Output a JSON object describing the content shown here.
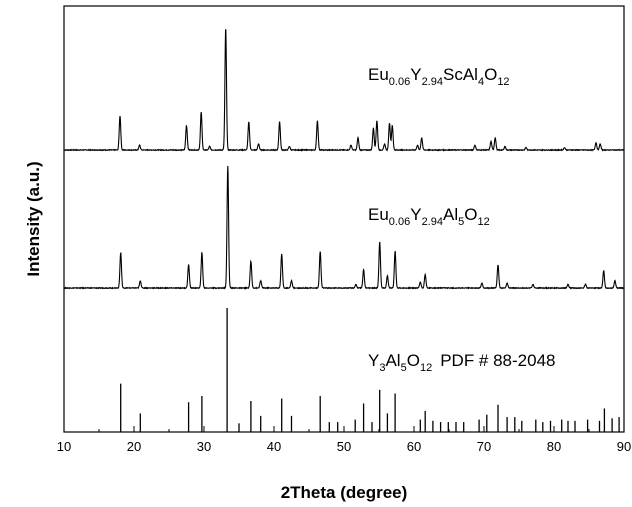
{
  "chart_data": {
    "type": "line",
    "xlabel": "2Theta (degree)",
    "ylabel": "Intensity (a.u.)",
    "xlim": [
      10,
      90
    ],
    "x_ticks": [
      "10",
      "20",
      "30",
      "40",
      "50",
      "60",
      "70",
      "80",
      "90"
    ],
    "grid": false,
    "panels": [
      {
        "name": "Eu0.06Y2.94ScAl4O12",
        "label": {
          "base1": "Eu",
          "sub1": "0.06",
          "base2": "Y",
          "sub2": "2.94",
          "base3": "ScAl",
          "sub3": "4",
          "base4": "O",
          "sub4": "12"
        },
        "style": "profile",
        "peaks": [
          {
            "x": 18.0,
            "y": 0.28
          },
          {
            "x": 20.8,
            "y": 0.04
          },
          {
            "x": 27.5,
            "y": 0.2
          },
          {
            "x": 29.6,
            "y": 0.31
          },
          {
            "x": 30.8,
            "y": 0.03
          },
          {
            "x": 33.1,
            "y": 1.0
          },
          {
            "x": 36.4,
            "y": 0.23
          },
          {
            "x": 37.8,
            "y": 0.05
          },
          {
            "x": 40.8,
            "y": 0.23
          },
          {
            "x": 42.2,
            "y": 0.03
          },
          {
            "x": 46.2,
            "y": 0.24
          },
          {
            "x": 51.0,
            "y": 0.04
          },
          {
            "x": 52.0,
            "y": 0.1
          },
          {
            "x": 54.2,
            "y": 0.18
          },
          {
            "x": 54.7,
            "y": 0.24
          },
          {
            "x": 55.8,
            "y": 0.05
          },
          {
            "x": 56.5,
            "y": 0.22
          },
          {
            "x": 56.9,
            "y": 0.2
          },
          {
            "x": 60.5,
            "y": 0.04
          },
          {
            "x": 61.1,
            "y": 0.1
          },
          {
            "x": 68.7,
            "y": 0.04
          },
          {
            "x": 71.0,
            "y": 0.07
          },
          {
            "x": 71.6,
            "y": 0.1
          },
          {
            "x": 73.0,
            "y": 0.03
          },
          {
            "x": 76.0,
            "y": 0.02
          },
          {
            "x": 81.5,
            "y": 0.02
          },
          {
            "x": 86.0,
            "y": 0.06
          },
          {
            "x": 86.6,
            "y": 0.05
          }
        ]
      },
      {
        "name": "Eu0.06Y2.94Al5O12",
        "label": {
          "base1": "Eu",
          "sub1": "0.06",
          "base2": "Y",
          "sub2": "2.94",
          "base3": "Al",
          "sub3": "5",
          "base4": "O",
          "sub4": "12"
        },
        "style": "profile",
        "peaks": [
          {
            "x": 18.1,
            "y": 0.29
          },
          {
            "x": 20.9,
            "y": 0.06
          },
          {
            "x": 27.8,
            "y": 0.19
          },
          {
            "x": 29.7,
            "y": 0.29
          },
          {
            "x": 33.4,
            "y": 1.0
          },
          {
            "x": 36.7,
            "y": 0.22
          },
          {
            "x": 38.1,
            "y": 0.06
          },
          {
            "x": 41.1,
            "y": 0.28
          },
          {
            "x": 42.5,
            "y": 0.06
          },
          {
            "x": 46.6,
            "y": 0.3
          },
          {
            "x": 51.7,
            "y": 0.03
          },
          {
            "x": 52.8,
            "y": 0.15
          },
          {
            "x": 55.1,
            "y": 0.38
          },
          {
            "x": 56.2,
            "y": 0.1
          },
          {
            "x": 57.3,
            "y": 0.3
          },
          {
            "x": 60.9,
            "y": 0.05
          },
          {
            "x": 61.6,
            "y": 0.11
          },
          {
            "x": 69.7,
            "y": 0.04
          },
          {
            "x": 72.0,
            "y": 0.19
          },
          {
            "x": 73.3,
            "y": 0.04
          },
          {
            "x": 77.0,
            "y": 0.03
          },
          {
            "x": 82.0,
            "y": 0.03
          },
          {
            "x": 84.5,
            "y": 0.03
          },
          {
            "x": 87.1,
            "y": 0.14
          },
          {
            "x": 88.7,
            "y": 0.06
          }
        ]
      },
      {
        "name": "Y3Al5O12 PDF # 88-2048",
        "label": {
          "base1": "Y",
          "sub1": "3",
          "base2": "Al",
          "sub2": "5",
          "base3": "O",
          "sub3": "12",
          "base4": "",
          "sub4": "",
          "suffix": "PDF # 88-2048"
        },
        "style": "sticks",
        "peaks": [
          {
            "x": 18.1,
            "y": 0.39
          },
          {
            "x": 20.9,
            "y": 0.15
          },
          {
            "x": 27.8,
            "y": 0.24
          },
          {
            "x": 29.7,
            "y": 0.29
          },
          {
            "x": 33.3,
            "y": 1.0
          },
          {
            "x": 35.0,
            "y": 0.07
          },
          {
            "x": 36.7,
            "y": 0.25
          },
          {
            "x": 38.1,
            "y": 0.13
          },
          {
            "x": 41.1,
            "y": 0.27
          },
          {
            "x": 42.5,
            "y": 0.13
          },
          {
            "x": 46.6,
            "y": 0.29
          },
          {
            "x": 47.9,
            "y": 0.08
          },
          {
            "x": 49.1,
            "y": 0.08
          },
          {
            "x": 51.6,
            "y": 0.1
          },
          {
            "x": 52.8,
            "y": 0.23
          },
          {
            "x": 54.0,
            "y": 0.08
          },
          {
            "x": 55.1,
            "y": 0.34
          },
          {
            "x": 56.2,
            "y": 0.15
          },
          {
            "x": 57.3,
            "y": 0.31
          },
          {
            "x": 60.9,
            "y": 0.1
          },
          {
            "x": 61.6,
            "y": 0.17
          },
          {
            "x": 62.7,
            "y": 0.09
          },
          {
            "x": 63.8,
            "y": 0.08
          },
          {
            "x": 64.9,
            "y": 0.08
          },
          {
            "x": 66.0,
            "y": 0.08
          },
          {
            "x": 67.1,
            "y": 0.08
          },
          {
            "x": 69.3,
            "y": 0.1
          },
          {
            "x": 70.4,
            "y": 0.14
          },
          {
            "x": 72.0,
            "y": 0.22
          },
          {
            "x": 73.3,
            "y": 0.12
          },
          {
            "x": 74.4,
            "y": 0.12
          },
          {
            "x": 75.4,
            "y": 0.09
          },
          {
            "x": 77.4,
            "y": 0.1
          },
          {
            "x": 78.4,
            "y": 0.08
          },
          {
            "x": 79.5,
            "y": 0.09
          },
          {
            "x": 81.1,
            "y": 0.1
          },
          {
            "x": 82.0,
            "y": 0.09
          },
          {
            "x": 83.0,
            "y": 0.09
          },
          {
            "x": 84.8,
            "y": 0.1
          },
          {
            "x": 86.5,
            "y": 0.09
          },
          {
            "x": 87.2,
            "y": 0.19
          },
          {
            "x": 88.3,
            "y": 0.11
          },
          {
            "x": 89.3,
            "y": 0.12
          }
        ]
      }
    ]
  }
}
